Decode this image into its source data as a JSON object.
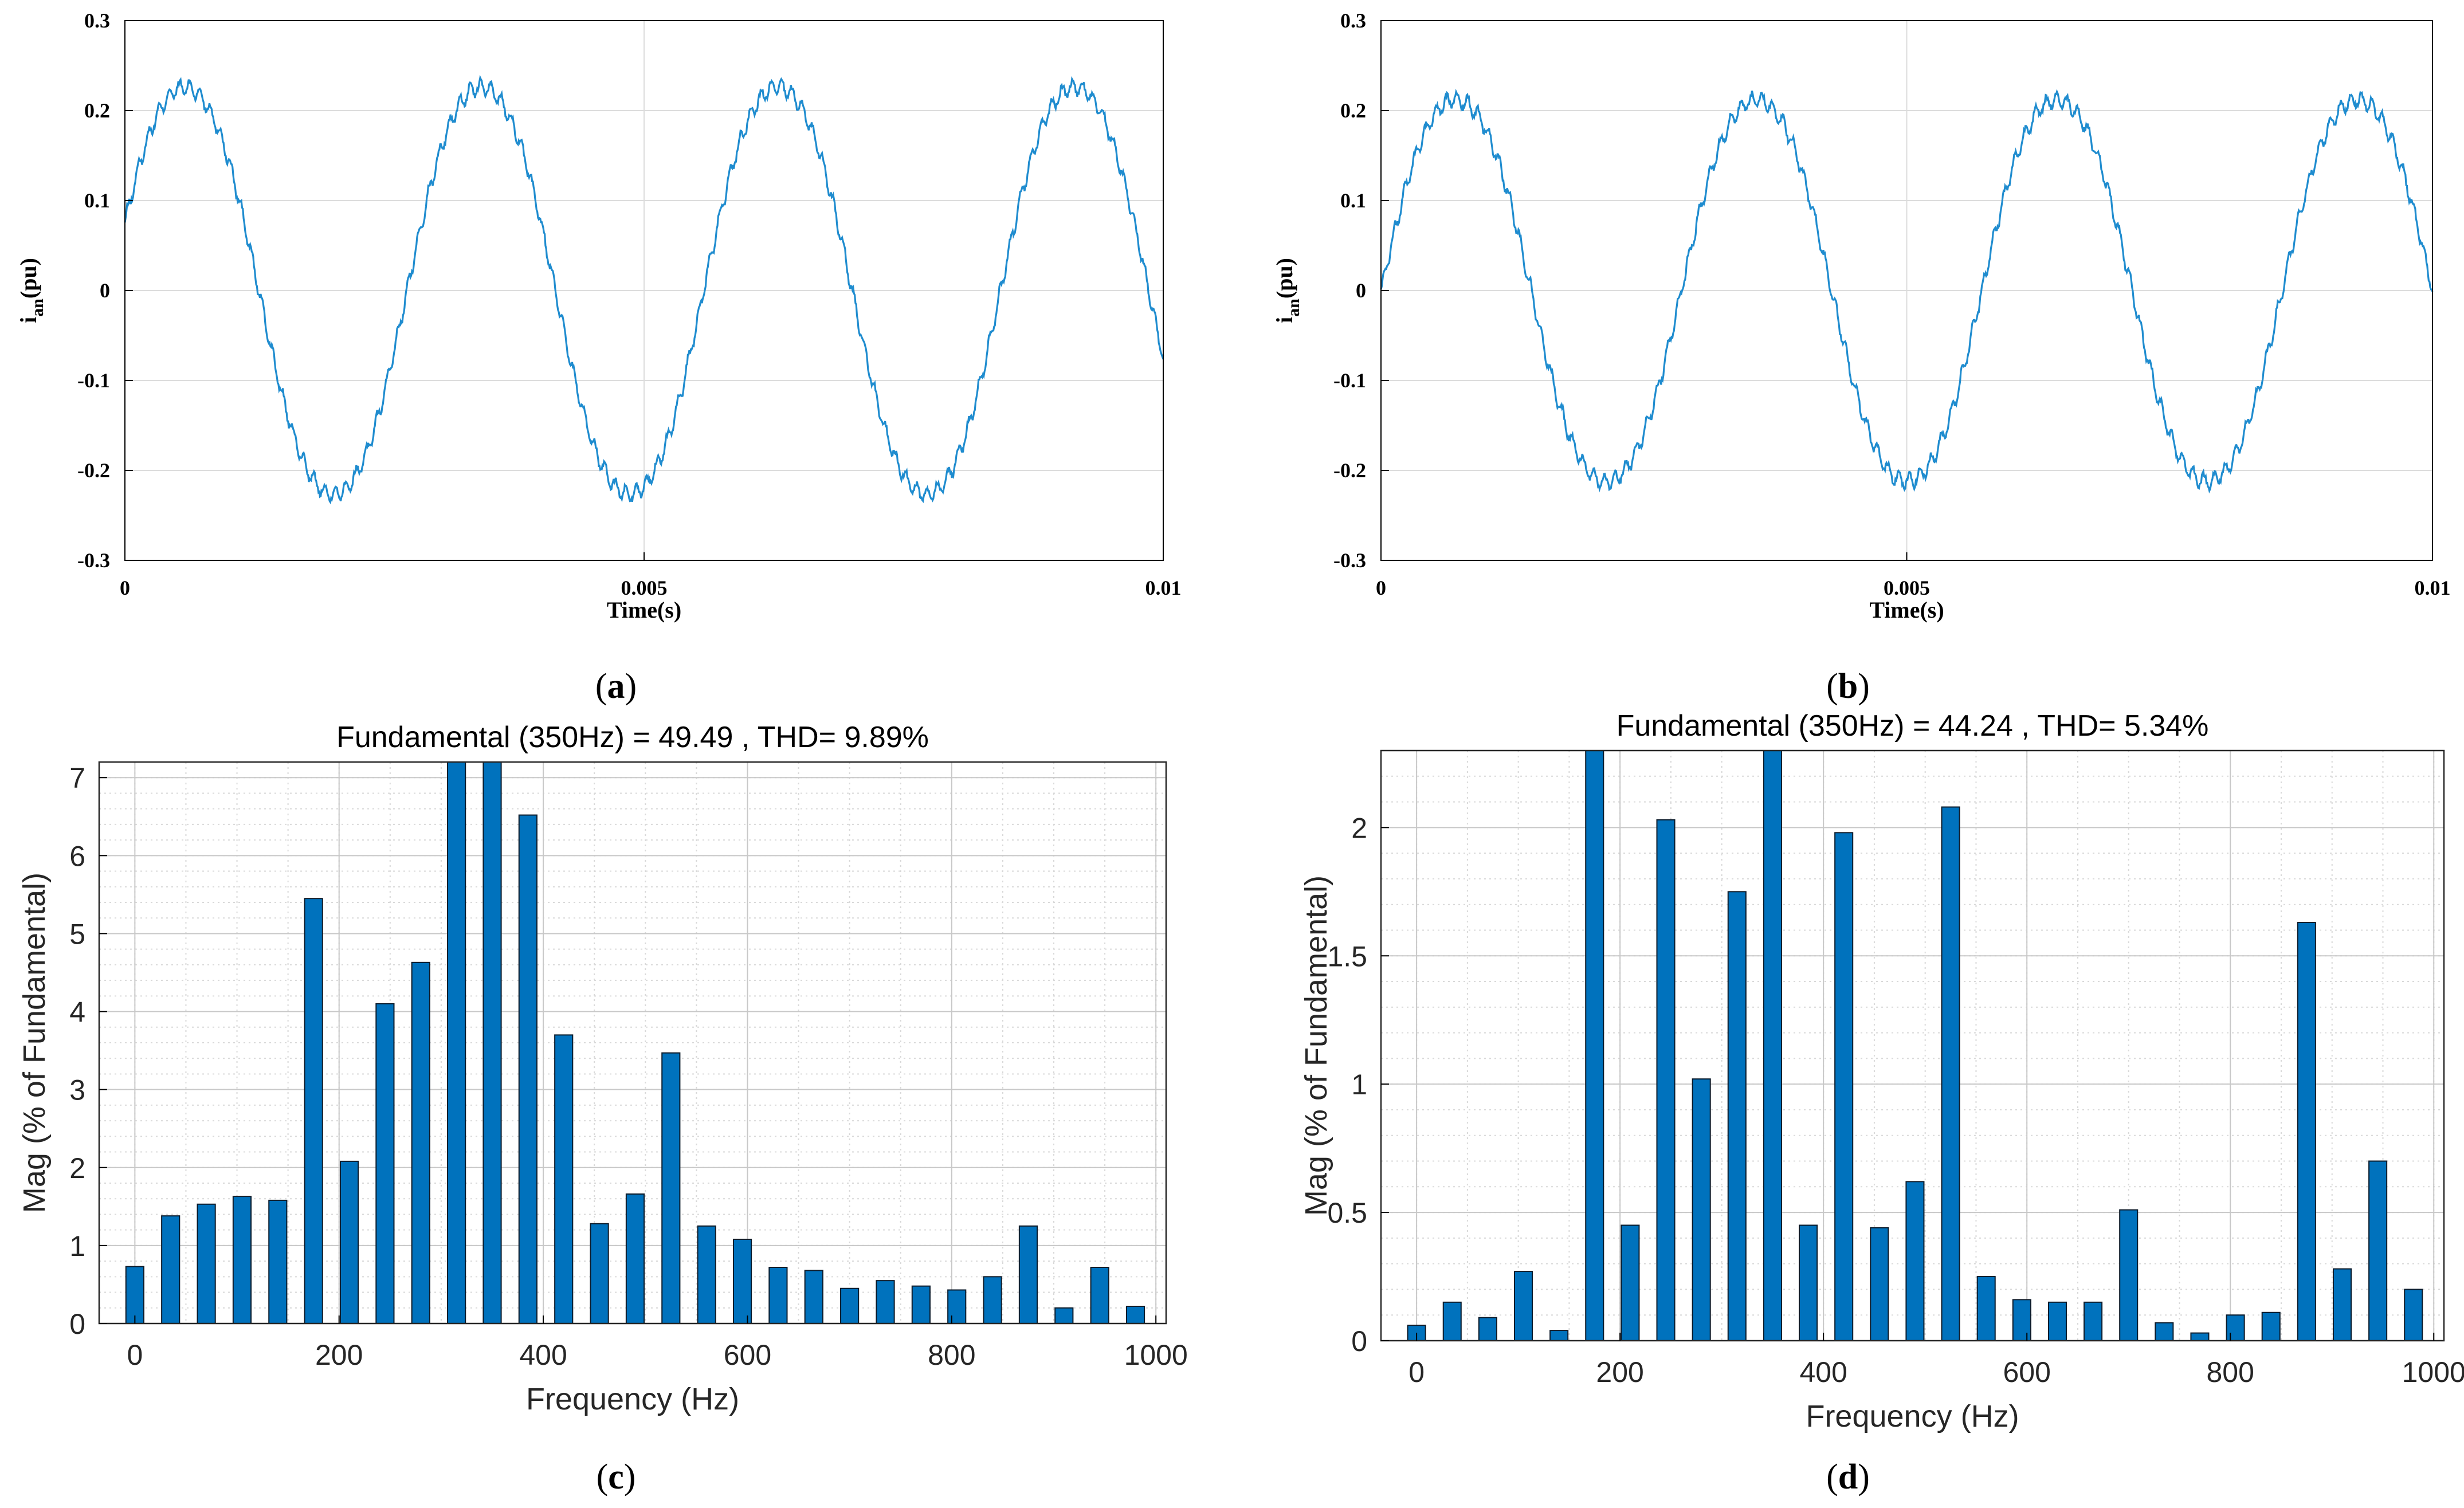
{
  "chart_data": [
    {
      "id": "a",
      "type": "line",
      "panel_label": "a",
      "xlabel": "Time(s)",
      "ylabel_main": "i",
      "ylabel_sub": "an",
      "ylabel_unit": "(pu)",
      "xlim": [
        0,
        0.01
      ],
      "ylim": [
        -0.3,
        0.3
      ],
      "x_ticks": [
        0,
        0.005,
        0.01
      ],
      "x_tick_labels": [
        "0",
        "0.005",
        "0.01"
      ],
      "y_ticks": [
        -0.3,
        -0.2,
        -0.1,
        0,
        0.1,
        0.2,
        0.3
      ],
      "y_tick_labels": [
        "-0.3",
        "-0.2",
        "-0.1",
        "0",
        "0.1",
        "0.2",
        "0.3"
      ],
      "grid": true,
      "series": [
        {
          "name": "i_an",
          "color": "#1f8ccf",
          "amplitude": 0.232,
          "frequency_hz": 350,
          "phase_deg": 17.5,
          "description": "sinusoid 350 Hz, 3.5 cycles, high-frequency ripple"
        }
      ]
    },
    {
      "id": "b",
      "type": "line",
      "panel_label": "b",
      "xlabel": "Time(s)",
      "ylabel_main": "i",
      "ylabel_sub": "an",
      "ylabel_unit": "(pu)",
      "xlim": [
        0,
        0.01
      ],
      "ylim": [
        -0.3,
        0.3
      ],
      "x_ticks": [
        0,
        0.005,
        0.01
      ],
      "x_tick_labels": [
        "0",
        "0.005",
        "0.01"
      ],
      "y_ticks": [
        -0.3,
        -0.2,
        -0.1,
        0,
        0.1,
        0.2,
        0.3
      ],
      "y_tick_labels": [
        "-0.3",
        "-0.2",
        "-0.1",
        "0",
        "0.1",
        "0.2",
        "0.3"
      ],
      "grid": true,
      "series": [
        {
          "name": "i_an",
          "color": "#1f8ccf",
          "amplitude": 0.218,
          "frequency_hz": 350,
          "phase_deg": 0,
          "description": "sinusoid 350 Hz, 3.5 cycles, high-frequency ripple"
        }
      ]
    },
    {
      "id": "c",
      "type": "bar",
      "panel_label": "c",
      "title": "Fundamental (350Hz) = 49.49 , THD= 9.89%",
      "xlabel": "Frequency (Hz)",
      "ylabel": "Mag (% of Fundamental)",
      "xlim": [
        -35,
        1010
      ],
      "ylim": [
        0,
        7.2
      ],
      "x_ticks": [
        0,
        200,
        400,
        600,
        800,
        1000
      ],
      "x_tick_labels": [
        "0",
        "200",
        "400",
        "600",
        "800",
        "1000"
      ],
      "y_ticks": [
        0,
        1,
        2,
        3,
        4,
        5,
        6,
        7
      ],
      "y_tick_labels": [
        "0",
        "1",
        "2",
        "3",
        "4",
        "5",
        "6",
        "7"
      ],
      "grid": true,
      "bar_color": "#0072bd",
      "x": [
        0,
        35,
        70,
        105,
        140,
        175,
        210,
        245,
        280,
        315,
        350,
        385,
        420,
        455,
        490,
        525,
        560,
        595,
        630,
        665,
        700,
        735,
        770,
        805,
        840,
        875,
        910,
        945,
        980
      ],
      "values": [
        0.73,
        1.38,
        1.53,
        1.63,
        1.58,
        5.45,
        2.08,
        4.1,
        4.63,
        7.3,
        7.3,
        6.52,
        3.7,
        1.28,
        1.66,
        3.47,
        1.25,
        1.08,
        0.72,
        0.68,
        0.45,
        0.55,
        0.48,
        0.43,
        0.6,
        1.25,
        0.2,
        0.72,
        0.22
      ]
    },
    {
      "id": "d",
      "type": "bar",
      "panel_label": "d",
      "title": "Fundamental (350Hz) = 44.24 , THD= 5.34%",
      "xlabel": "Frequency (Hz)",
      "ylabel": "Mag (% of Fundamental)",
      "xlim": [
        -35,
        1010
      ],
      "ylim": [
        0,
        2.3
      ],
      "x_ticks": [
        0,
        200,
        400,
        600,
        800,
        1000
      ],
      "x_tick_labels": [
        "0",
        "200",
        "400",
        "600",
        "800",
        "1000"
      ],
      "y_ticks": [
        0,
        0.5,
        1,
        1.5,
        2
      ],
      "y_tick_labels": [
        "0",
        "0.5",
        "1",
        "1.5",
        "2"
      ],
      "grid": true,
      "bar_color": "#0072bd",
      "x": [
        0,
        35,
        70,
        105,
        140,
        175,
        210,
        245,
        280,
        315,
        350,
        385,
        420,
        455,
        490,
        525,
        560,
        595,
        630,
        665,
        700,
        735,
        770,
        805,
        840,
        875,
        910,
        945,
        980
      ],
      "values": [
        0.06,
        0.15,
        0.09,
        0.27,
        0.04,
        2.3,
        0.45,
        2.03,
        1.02,
        1.75,
        2.3,
        0.45,
        1.98,
        0.44,
        0.62,
        2.08,
        0.25,
        0.16,
        0.15,
        0.15,
        0.51,
        0.07,
        0.03,
        0.1,
        0.11,
        1.63,
        0.28,
        0.7,
        0.2
      ]
    }
  ]
}
